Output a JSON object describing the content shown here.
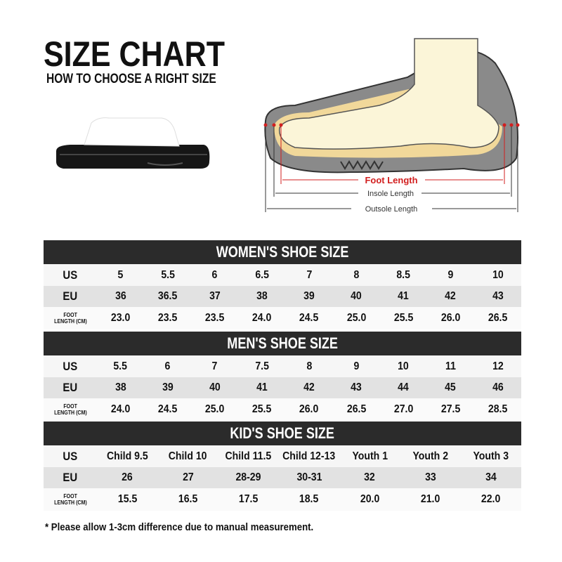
{
  "header": {
    "title": "SIZE CHART",
    "subtitle": "HOW TO CHOOSE A RIGHT SIZE"
  },
  "diagram": {
    "foot_length": "Foot Length",
    "insole_length": "Insole Length",
    "outsole_length": "Outsole Length",
    "accent": "#d21f1f"
  },
  "row_labels": {
    "us": "US",
    "eu": "EU",
    "foot1": "FOOT",
    "foot2": "LENGTH (CM)"
  },
  "women": {
    "title": "WOMEN'S SHOE SIZE",
    "us": [
      "5",
      "5.5",
      "6",
      "6.5",
      "7",
      "8",
      "8.5",
      "9",
      "10"
    ],
    "eu": [
      "36",
      "36.5",
      "37",
      "38",
      "39",
      "40",
      "41",
      "42",
      "43"
    ],
    "foot": [
      "23.0",
      "23.5",
      "23.5",
      "24.0",
      "24.5",
      "25.0",
      "25.5",
      "26.0",
      "26.5"
    ]
  },
  "men": {
    "title": "MEN'S SHOE SIZE",
    "us": [
      "5.5",
      "6",
      "7",
      "7.5",
      "8",
      "9",
      "10",
      "11",
      "12"
    ],
    "eu": [
      "38",
      "39",
      "40",
      "41",
      "42",
      "43",
      "44",
      "45",
      "46"
    ],
    "foot": [
      "24.0",
      "24.5",
      "25.0",
      "25.5",
      "26.0",
      "26.5",
      "27.0",
      "27.5",
      "28.5"
    ]
  },
  "kids": {
    "title": "KID'S SHOE SIZE",
    "us": [
      "Child 9.5",
      "Child 10",
      "Child 11.5",
      "Child 12-13",
      "Youth 1",
      "Youth 2",
      "Youth 3"
    ],
    "eu": [
      "26",
      "27",
      "28-29",
      "30-31",
      "32",
      "33",
      "34"
    ],
    "foot": [
      "15.5",
      "16.5",
      "17.5",
      "18.5",
      "20.0",
      "21.0",
      "22.0"
    ]
  },
  "note": "* Please allow 1-3cm difference due to manual measurement."
}
